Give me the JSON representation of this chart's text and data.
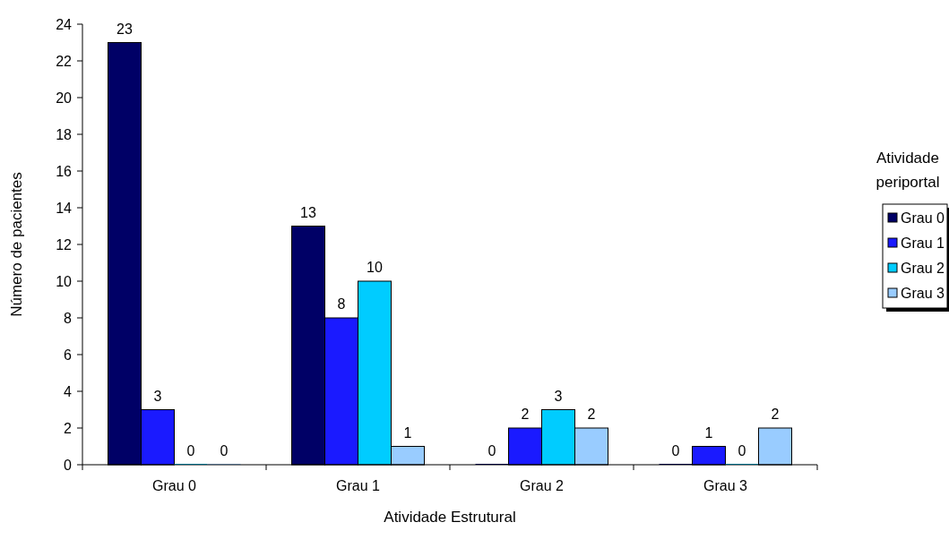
{
  "chart_data": {
    "type": "bar",
    "xlabel": "Atividade Estrutural",
    "ylabel": "Número de pacientes",
    "legend_title": "Atividade periportal",
    "categories": [
      "Grau 0",
      "Grau 1",
      "Grau 2",
      "Grau 3"
    ],
    "series": [
      {
        "name": "Grau 0",
        "color": "#000066",
        "values": [
          23,
          13,
          0,
          0
        ]
      },
      {
        "name": "Grau 1",
        "color": "#1a1aff",
        "values": [
          3,
          8,
          2,
          1
        ]
      },
      {
        "name": "Grau 2",
        "color": "#00ccff",
        "values": [
          0,
          10,
          3,
          0
        ]
      },
      {
        "name": "Grau 3",
        "color": "#99ccff",
        "values": [
          0,
          1,
          2,
          2
        ]
      }
    ],
    "ylim": [
      0,
      24
    ],
    "yticks": [
      0,
      2,
      4,
      6,
      8,
      10,
      12,
      14,
      16,
      18,
      20,
      22,
      24
    ],
    "data_labels": true,
    "legend": "right",
    "grid": false
  }
}
